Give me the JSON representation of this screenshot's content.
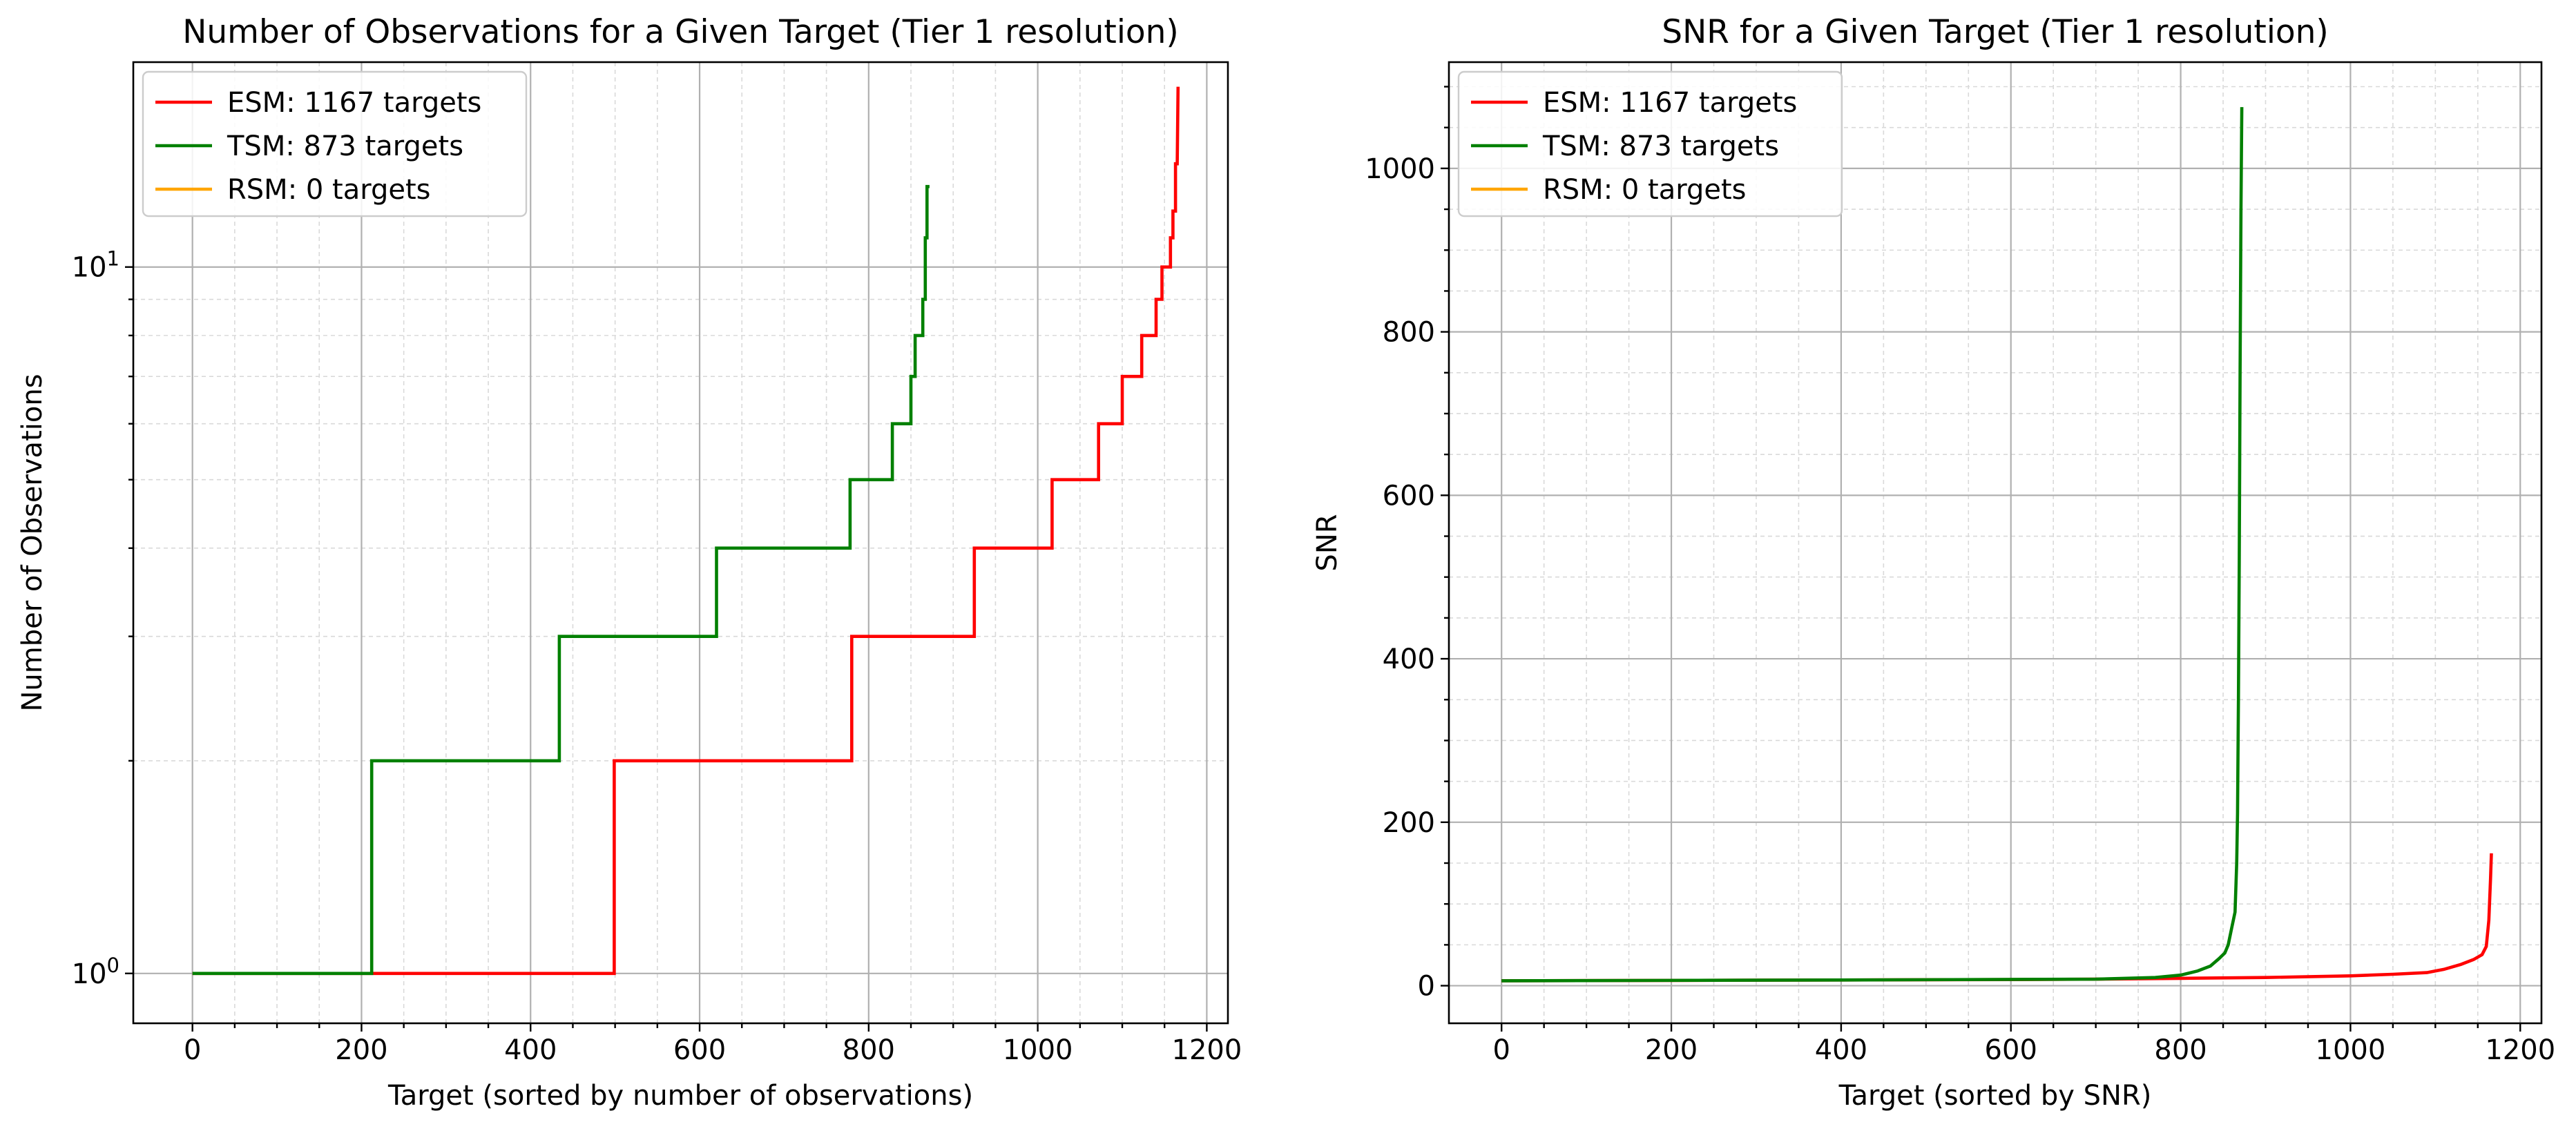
{
  "chart_data": [
    {
      "type": "line",
      "title": "Number of Observations for a Given Target (Tier 1 resolution)",
      "xlabel": "Target (sorted by number of observations)",
      "ylabel": "Number of Observations",
      "xlim": [
        -70,
        1225
      ],
      "ylim": [
        0.85,
        19.5
      ],
      "yscale": "log",
      "xticks": [
        0,
        200,
        400,
        600,
        800,
        1000,
        1200
      ],
      "xtick_labels": [
        "0",
        "200",
        "400",
        "600",
        "800",
        "1000",
        "1200"
      ],
      "yticks": [
        1,
        10
      ],
      "grid": true,
      "legend_position": "top-left",
      "series": [
        {
          "name": "ESM: 1167 targets",
          "color": "#ff0000",
          "x": [
            0,
            499,
            499,
            780,
            780,
            925,
            925,
            1017,
            1017,
            1072,
            1072,
            1100,
            1100,
            1123,
            1123,
            1140,
            1140,
            1147,
            1147,
            1157,
            1157,
            1160,
            1160,
            1163,
            1163,
            1165,
            1166
          ],
          "y": [
            1,
            1,
            2,
            2,
            3,
            3,
            4,
            4,
            5,
            5,
            6,
            6,
            7,
            7,
            8,
            8,
            9,
            9,
            10,
            10,
            11,
            11,
            12,
            12,
            14,
            14,
            18
          ]
        },
        {
          "name": "TSM: 873 targets",
          "color": "#008000",
          "x": [
            0,
            212,
            212,
            434,
            434,
            620,
            620,
            778,
            778,
            828,
            828,
            850,
            850,
            855,
            855,
            864,
            864,
            867,
            867,
            869,
            869,
            872
          ],
          "y": [
            1,
            1,
            2,
            2,
            3,
            3,
            4,
            4,
            5,
            5,
            6,
            6,
            7,
            7,
            8,
            8,
            9,
            9,
            11,
            11,
            13,
            13
          ]
        },
        {
          "name": "RSM: 0 targets",
          "color": "#ffa500",
          "x": [],
          "y": []
        }
      ]
    },
    {
      "type": "line",
      "title": "SNR for a Given Target (Tier 1 resolution)",
      "xlabel": "Target (sorted by SNR)",
      "ylabel": "SNR",
      "xlim": [
        -62,
        1225
      ],
      "ylim": [
        -46,
        1130
      ],
      "xticks": [
        0,
        200,
        400,
        600,
        800,
        1000,
        1200
      ],
      "xtick_labels": [
        "0",
        "200",
        "400",
        "600",
        "800",
        "1000",
        "1200"
      ],
      "yticks": [
        0,
        200,
        400,
        600,
        800,
        1000
      ],
      "ytick_labels": [
        "0",
        "200",
        "400",
        "600",
        "800",
        "1000"
      ],
      "grid": true,
      "legend_position": "top-left",
      "series": [
        {
          "name": "ESM: 1167 targets",
          "color": "#ff0000",
          "x": [
            0,
            200,
            400,
            600,
            700,
            800,
            900,
            1000,
            1050,
            1090,
            1110,
            1130,
            1145,
            1155,
            1160,
            1163,
            1165,
            1166
          ],
          "y": [
            6,
            6.5,
            7,
            7.5,
            8,
            9,
            10,
            12,
            14,
            16,
            20,
            26,
            32,
            38,
            48,
            80,
            130,
            162
          ]
        },
        {
          "name": "TSM: 873 targets",
          "color": "#008000",
          "x": [
            0,
            400,
            700,
            770,
            800,
            820,
            835,
            845,
            852,
            856,
            860,
            864,
            866,
            867,
            868,
            869,
            870,
            871,
            872
          ],
          "y": [
            6,
            7,
            8,
            10,
            13,
            18,
            24,
            33,
            40,
            50,
            70,
            90,
            150,
            210,
            350,
            520,
            750,
            950,
            1075
          ]
        },
        {
          "name": "RSM: 0 targets",
          "color": "#ffa500",
          "x": [],
          "y": []
        }
      ]
    }
  ]
}
